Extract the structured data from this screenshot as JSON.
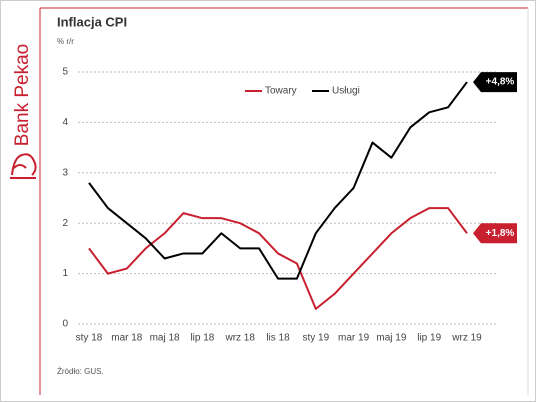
{
  "brand": "Bank Pekao",
  "chart_data": {
    "type": "line",
    "title": "Inflacja CPI",
    "subtitle": "% r/r",
    "source": "Źródło: GUS.",
    "categories": [
      "sty 18",
      null,
      "mar 18",
      null,
      "maj 18",
      null,
      "lip 18",
      null,
      "wrz 18",
      null,
      "lis 18",
      null,
      "sty 19",
      null,
      "mar 19",
      null,
      "maj 19",
      null,
      "lip 19",
      null,
      "wrz 19"
    ],
    "series": [
      {
        "name": "Towary",
        "color": "#c8202f",
        "end_label": "+1,8%",
        "values": [
          1.5,
          1.0,
          1.1,
          1.5,
          1.8,
          2.2,
          2.1,
          2.1,
          2.0,
          1.8,
          1.4,
          1.2,
          0.3,
          0.6,
          1.0,
          1.4,
          1.8,
          2.1,
          2.3,
          2.3,
          1.8
        ]
      },
      {
        "name": "Usługi",
        "color": "#000000",
        "end_label": "+4,8%",
        "values": [
          2.8,
          2.3,
          2.0,
          1.7,
          1.3,
          1.4,
          1.4,
          1.8,
          1.5,
          1.5,
          0.9,
          0.9,
          1.8,
          2.3,
          2.7,
          3.6,
          3.3,
          3.9,
          4.2,
          4.3,
          4.8
        ]
      }
    ],
    "ylim": [
      0,
      5
    ],
    "yticks": [
      0,
      1,
      2,
      3,
      4,
      5
    ],
    "grid": true,
    "legend": "top"
  }
}
